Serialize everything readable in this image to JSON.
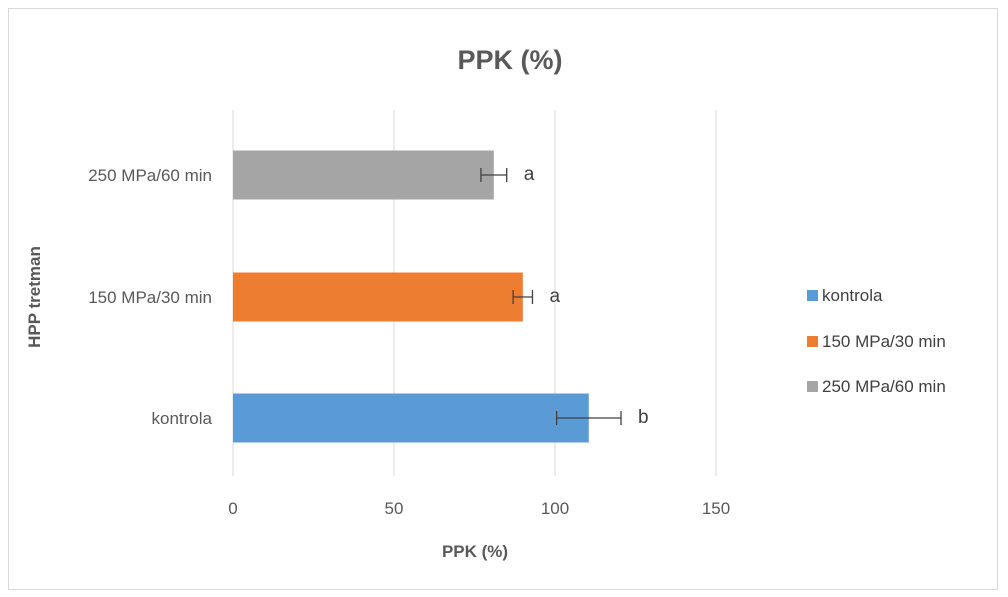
{
  "chart_data": {
    "type": "bar",
    "orientation": "horizontal",
    "title": "PPK (%)",
    "xlabel": "PPK (%)",
    "ylabel": "HPP tretman",
    "xlim": [
      0,
      200
    ],
    "xticks": [
      0,
      50,
      100,
      150
    ],
    "grid": true,
    "legend_position": "right",
    "categories": [
      "kontrola",
      "150 MPa/30 min",
      "250 MPa/60 min"
    ],
    "values": [
      110.5,
      90,
      81
    ],
    "errors": [
      10,
      3,
      4
    ],
    "annotations": [
      "b",
      "a",
      "a"
    ],
    "colors": [
      "#5B9BD5",
      "#ED7D31",
      "#A5A5A5"
    ],
    "legend": [
      "kontrola",
      "150 MPa/30 min",
      "250 MPa/60 min"
    ]
  }
}
